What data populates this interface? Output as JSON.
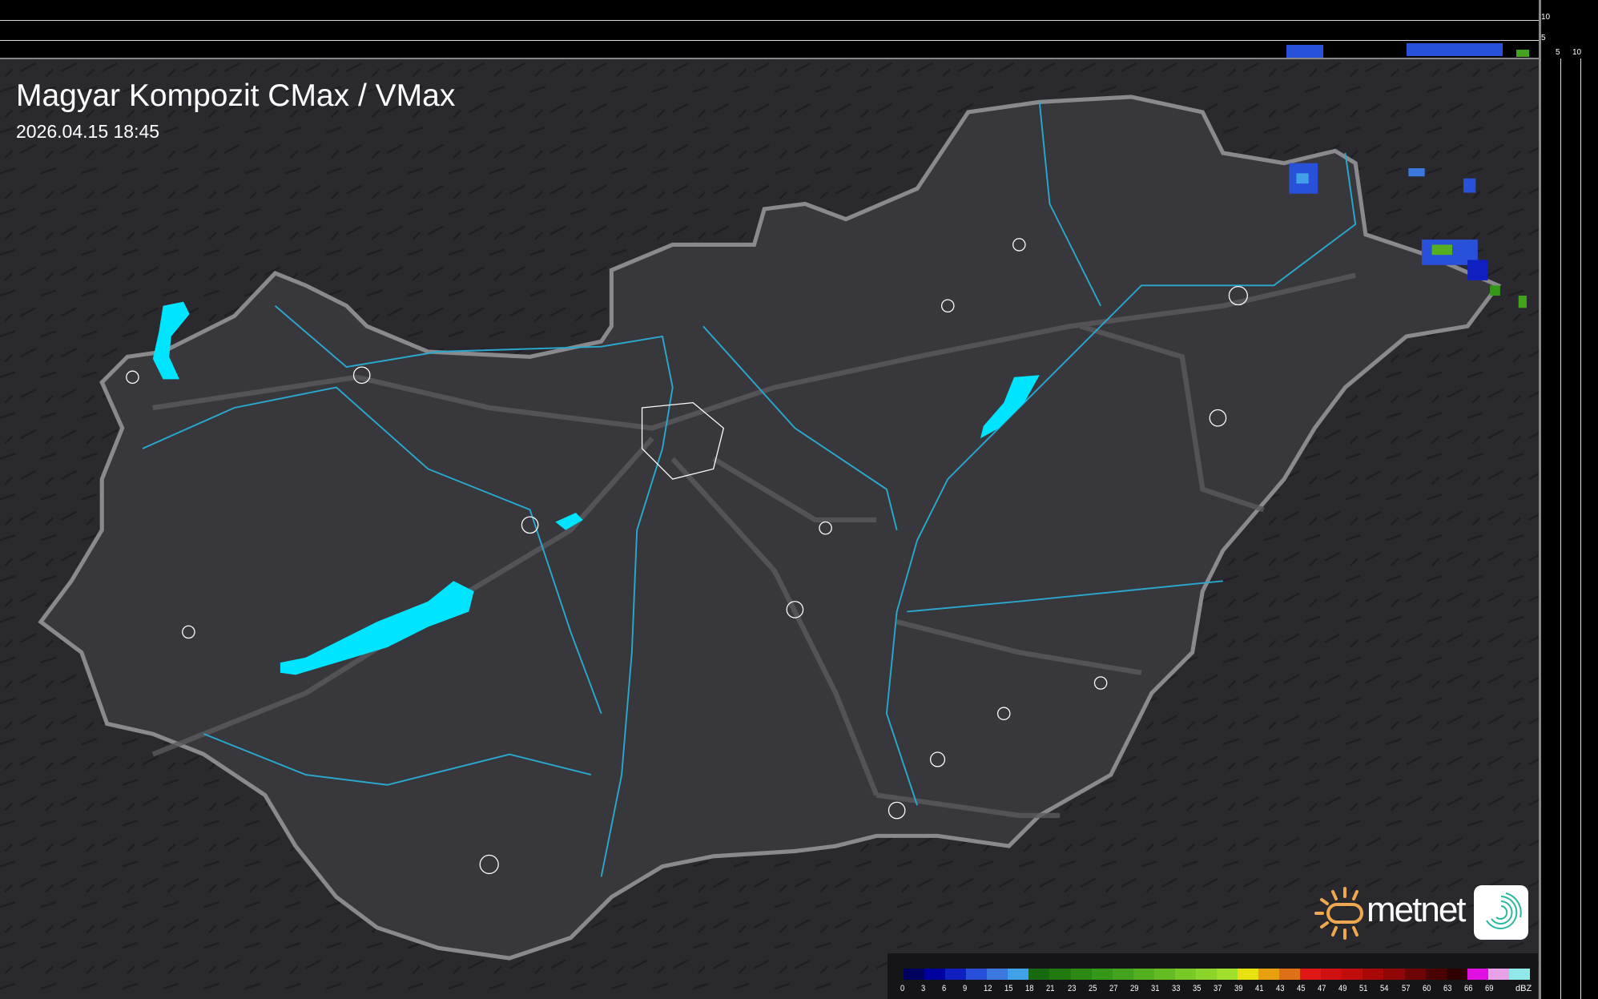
{
  "header": {
    "title": "Magyar Kompozit CMax / VMax",
    "timestamp": "2026.04.15 18:45"
  },
  "profile_axes": {
    "top_labels": [
      "10",
      "5"
    ],
    "right_labels": [
      "5",
      "10"
    ]
  },
  "colors": {
    "background": "#2a2a2e",
    "border": "#8a8a8e",
    "rivers": "#2aa8d0",
    "lakes": "#00e5ff",
    "towns": "#ffffff"
  },
  "legend": {
    "unit": "dBZ",
    "labels": [
      "0",
      "3",
      "6",
      "9",
      "12",
      "15",
      "18",
      "21",
      "23",
      "25",
      "27",
      "29",
      "31",
      "33",
      "35",
      "37",
      "39",
      "41",
      "43",
      "45",
      "47",
      "49",
      "51",
      "54",
      "57",
      "60",
      "63",
      "66",
      "69"
    ],
    "colors": [
      "#00005e",
      "#0000a0",
      "#1020c0",
      "#2850d8",
      "#3a78e0",
      "#40a0e8",
      "#186a10",
      "#207a10",
      "#2a8a14",
      "#359818",
      "#42a41c",
      "#55b020",
      "#65bc22",
      "#78c826",
      "#8cd42a",
      "#a0e02c",
      "#e8e010",
      "#e8a010",
      "#e07018",
      "#e01818",
      "#d01010",
      "#c00c0c",
      "#a80808",
      "#900606",
      "#700404",
      "#4a0202",
      "#300000",
      "#e010e0",
      "#e8a0e8",
      "#90e8e8"
    ]
  },
  "logo": {
    "brand": "metnet"
  }
}
